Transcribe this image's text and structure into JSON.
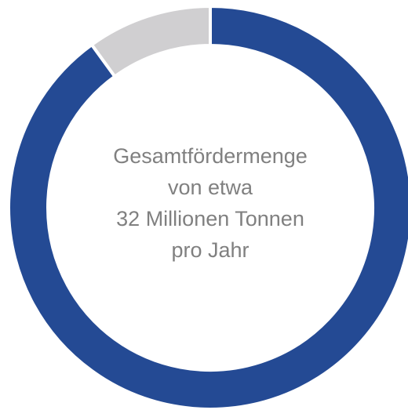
{
  "chart_data": {
    "type": "pie",
    "donut": true,
    "values": [
      90,
      10
    ],
    "colors": [
      "#244a94",
      "#d0cfd1"
    ],
    "center_text": [
      "Gesamtfördermenge",
      "von etwa",
      "32 Millionen Tonnen",
      "pro Jahr"
    ]
  }
}
